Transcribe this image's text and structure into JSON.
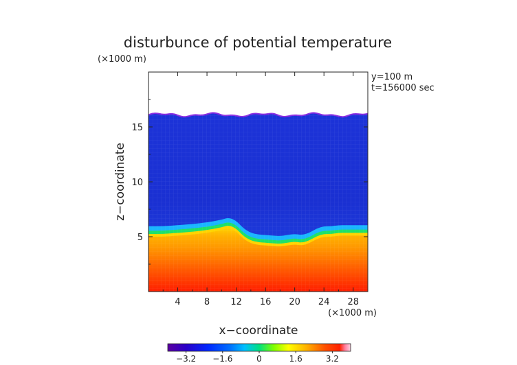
{
  "chart_data": {
    "type": "heatmap",
    "title": "disturbunce of potential temperature",
    "y_scale_note": "(×1000 m)",
    "x_scale_note": "(×1000 m)",
    "xlabel": "x−coordinate",
    "ylabel": "z−coordinate",
    "info_lines": [
      "y=100 m",
      "t=156000 sec"
    ],
    "xlim": [
      0,
      30
    ],
    "ylim": [
      0,
      20
    ],
    "x_ticks": [
      4,
      8,
      12,
      16,
      20,
      24,
      28
    ],
    "x_tick_labels": [
      "4",
      "8",
      "12",
      "16",
      "20",
      "24",
      "28"
    ],
    "y_ticks": [
      5,
      10,
      15
    ],
    "y_tick_labels": [
      "5",
      "10",
      "15"
    ],
    "colorbar": {
      "range": [
        -4,
        4
      ],
      "ticks": [
        -3.2,
        -1.6,
        0,
        1.6,
        3.2
      ],
      "tick_labels": [
        "−3.2",
        "−1.6",
        "0",
        "1.6",
        "3.2"
      ]
    },
    "top_of_data_z": 16.1,
    "interface": {
      "x": [
        0,
        2,
        4,
        6,
        8,
        10,
        11,
        12,
        13,
        14,
        15,
        16,
        17,
        18,
        19,
        20,
        21,
        22,
        23,
        24,
        25,
        26,
        27,
        28,
        30
      ],
      "z": [
        5.0,
        5.0,
        5.1,
        5.2,
        5.35,
        5.6,
        5.8,
        5.5,
        4.8,
        4.4,
        4.25,
        4.2,
        4.15,
        4.1,
        4.2,
        4.3,
        4.2,
        4.4,
        4.8,
        5.0,
        5.0,
        5.1,
        5.1,
        5.1,
        5.1
      ]
    },
    "colors": {
      "upper_blue": "#1f3fdd",
      "deep_red": "#ff1e00",
      "orange": "#ff8800",
      "yellow": "#ffd400",
      "green": "#00e060",
      "cyan": "#00c8ff",
      "top_edge": "#8a2be2"
    }
  }
}
